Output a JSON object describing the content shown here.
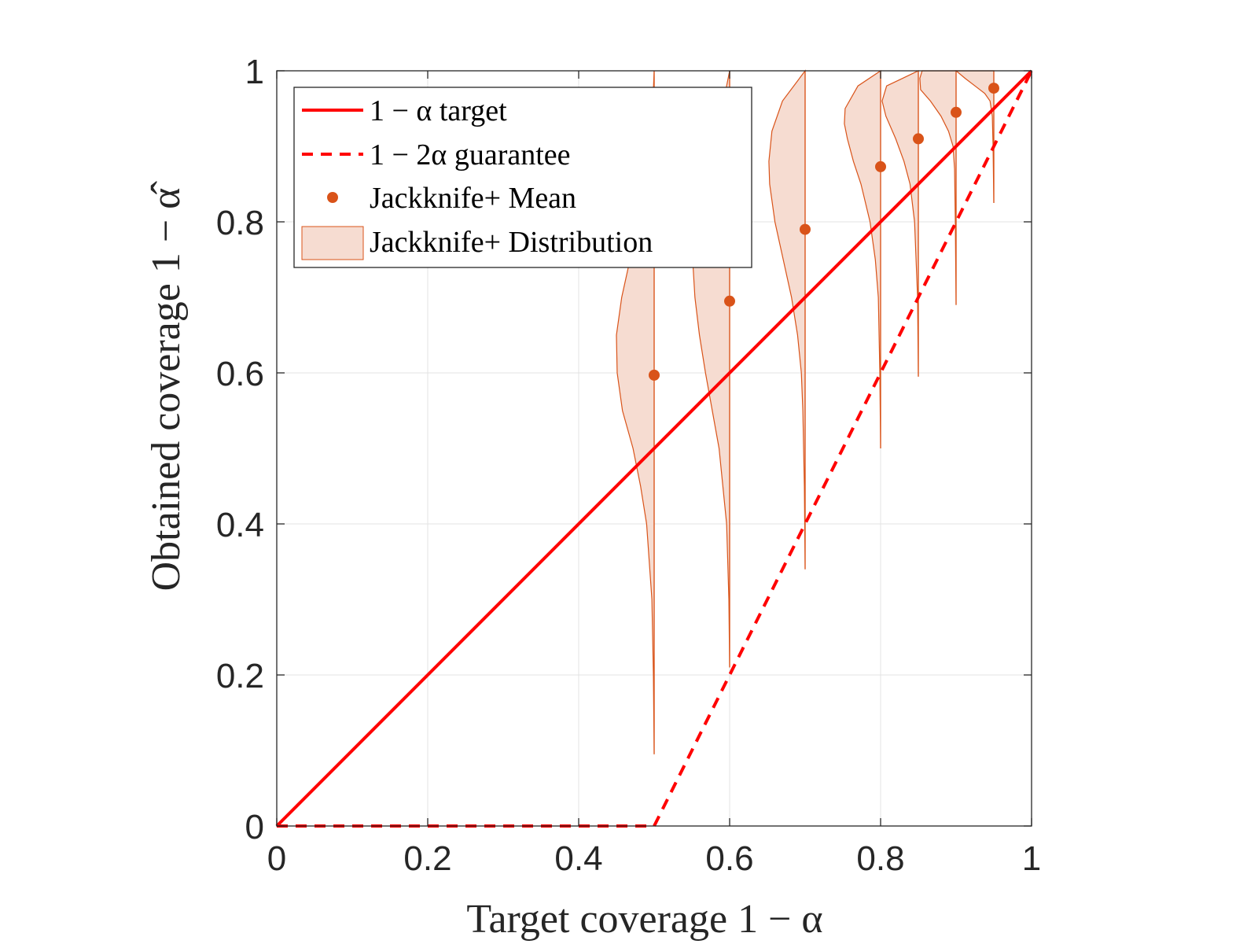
{
  "chart_data": {
    "type": "violin-line",
    "xlabel": "Target coverage 1 − α",
    "ylabel": "Obtained coverage 1 − α̂",
    "xlim": [
      0,
      1
    ],
    "ylim": [
      0,
      1
    ],
    "xticks": [
      0,
      0.2,
      0.4,
      0.6,
      0.8,
      1
    ],
    "yticks": [
      0,
      0.2,
      0.4,
      0.6,
      0.8,
      1
    ],
    "xtick_labels": [
      "0",
      "0.2",
      "0.4",
      "0.6",
      "0.8",
      "1"
    ],
    "ytick_labels": [
      "0",
      "0.2",
      "0.4",
      "0.6",
      "0.8",
      "1"
    ],
    "grid": true,
    "legend_position": "top-left",
    "legend": [
      {
        "label": "1 − α target",
        "key": "target"
      },
      {
        "label": "1 − 2α guarantee",
        "key": "guarantee"
      },
      {
        "label": "Jackknife+ Mean",
        "key": "mean"
      },
      {
        "label": "Jackknife+ Distribution",
        "key": "dist"
      }
    ],
    "colors": {
      "line": "#ff0000",
      "marker": "#d95319",
      "violin_fill": "#f6dcd1",
      "violin_edge": "#d95319"
    },
    "series": [
      {
        "name": "1 − α target",
        "style": "solid",
        "x": [
          0,
          1
        ],
        "y": [
          0,
          1
        ]
      },
      {
        "name": "1 − 2α guarantee",
        "style": "dashed",
        "x": [
          0,
          0.5,
          1
        ],
        "y": [
          0,
          0,
          1
        ]
      },
      {
        "name": "Jackknife+ Mean",
        "style": "marker",
        "x": [
          0.5,
          0.6,
          0.7,
          0.8,
          0.85,
          0.9,
          0.95
        ],
        "y": [
          0.597,
          0.695,
          0.79,
          0.873,
          0.91,
          0.945,
          0.977
        ]
      }
    ],
    "distributions": [
      {
        "x": 0.5,
        "ymin": 0.095,
        "ymax": 1.0,
        "profile": [
          [
            0.095,
            0
          ],
          [
            0.2,
            0.001
          ],
          [
            0.3,
            0.003
          ],
          [
            0.4,
            0.01
          ],
          [
            0.45,
            0.018
          ],
          [
            0.5,
            0.028
          ],
          [
            0.55,
            0.042
          ],
          [
            0.6,
            0.049
          ],
          [
            0.65,
            0.05
          ],
          [
            0.7,
            0.043
          ],
          [
            0.75,
            0.032
          ],
          [
            0.8,
            0.022
          ],
          [
            0.85,
            0.013
          ],
          [
            0.9,
            0.006
          ],
          [
            0.95,
            0.002
          ],
          [
            1.0,
            0
          ]
        ]
      },
      {
        "x": 0.6,
        "ymin": 0.21,
        "ymax": 1.0,
        "profile": [
          [
            0.21,
            0
          ],
          [
            0.3,
            0.001
          ],
          [
            0.4,
            0.004
          ],
          [
            0.5,
            0.014
          ],
          [
            0.55,
            0.023
          ],
          [
            0.6,
            0.032
          ],
          [
            0.65,
            0.04
          ],
          [
            0.7,
            0.046
          ],
          [
            0.75,
            0.049
          ],
          [
            0.8,
            0.048
          ],
          [
            0.85,
            0.04
          ],
          [
            0.9,
            0.026
          ],
          [
            0.95,
            0.01
          ],
          [
            1.0,
            0
          ]
        ]
      },
      {
        "x": 0.7,
        "ymin": 0.34,
        "ymax": 1.0,
        "profile": [
          [
            0.34,
            0
          ],
          [
            0.45,
            0.001
          ],
          [
            0.55,
            0.003
          ],
          [
            0.6,
            0.005
          ],
          [
            0.65,
            0.01
          ],
          [
            0.7,
            0.018
          ],
          [
            0.75,
            0.029
          ],
          [
            0.8,
            0.04
          ],
          [
            0.85,
            0.047
          ],
          [
            0.88,
            0.048
          ],
          [
            0.92,
            0.044
          ],
          [
            0.96,
            0.03
          ],
          [
            1.0,
            0
          ]
        ]
      },
      {
        "x": 0.8,
        "ymin": 0.5,
        "ymax": 1.0,
        "profile": [
          [
            0.5,
            0
          ],
          [
            0.6,
            0.001
          ],
          [
            0.7,
            0.003
          ],
          [
            0.75,
            0.007
          ],
          [
            0.8,
            0.014
          ],
          [
            0.85,
            0.026
          ],
          [
            0.88,
            0.036
          ],
          [
            0.91,
            0.044
          ],
          [
            0.93,
            0.048
          ],
          [
            0.95,
            0.047
          ],
          [
            0.98,
            0.03
          ],
          [
            1.0,
            0
          ]
        ]
      },
      {
        "x": 0.85,
        "ymin": 0.595,
        "ymax": 1.0,
        "profile": [
          [
            0.595,
            0
          ],
          [
            0.7,
            0.001
          ],
          [
            0.8,
            0.005
          ],
          [
            0.85,
            0.011
          ],
          [
            0.88,
            0.019
          ],
          [
            0.91,
            0.03
          ],
          [
            0.94,
            0.043
          ],
          [
            0.96,
            0.048
          ],
          [
            0.98,
            0.042
          ],
          [
            1.0,
            0
          ]
        ]
      },
      {
        "x": 0.9,
        "ymin": 0.69,
        "ymax": 1.0,
        "profile": [
          [
            0.69,
            0
          ],
          [
            0.8,
            0.001
          ],
          [
            0.87,
            0.002
          ],
          [
            0.9,
            0.004
          ],
          [
            0.92,
            0.01
          ],
          [
            0.94,
            0.02
          ],
          [
            0.96,
            0.034
          ],
          [
            0.975,
            0.047
          ],
          [
            0.99,
            0.048
          ],
          [
            1.0,
            0.045
          ]
        ]
      },
      {
        "x": 0.95,
        "ymin": 0.825,
        "ymax": 1.0,
        "profile": [
          [
            0.825,
            0
          ],
          [
            0.9,
            0.001
          ],
          [
            0.94,
            0.002
          ],
          [
            0.96,
            0.005
          ],
          [
            0.97,
            0.012
          ],
          [
            0.98,
            0.025
          ],
          [
            0.99,
            0.038
          ],
          [
            1.0,
            0.05
          ]
        ]
      }
    ]
  }
}
